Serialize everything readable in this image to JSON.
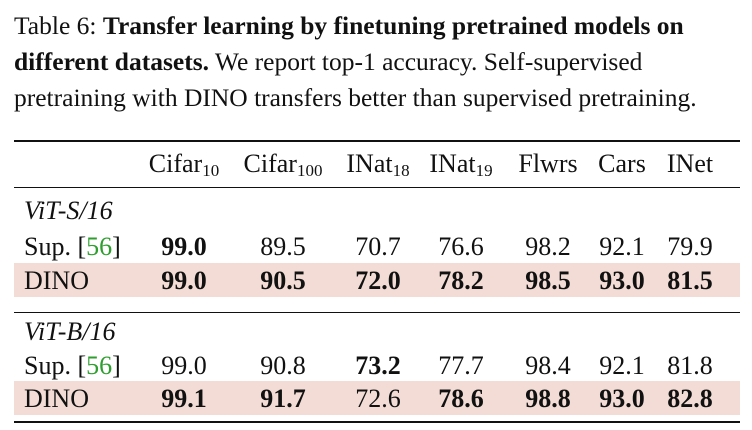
{
  "caption": {
    "label": "Table 6:",
    "title": "Transfer learning by finetuning pretrained models on different datasets.",
    "text": "We report top-1 accuracy. Self-supervised pretraining with DINO transfers better than supervised pretraining."
  },
  "headers": [
    {
      "name": "Cifar",
      "sub": "10"
    },
    {
      "name": "Cifar",
      "sub": "100"
    },
    {
      "name": "INat",
      "sub": "18"
    },
    {
      "name": "INat",
      "sub": "19"
    },
    {
      "name": "Flwrs",
      "sub": ""
    },
    {
      "name": "Cars",
      "sub": ""
    },
    {
      "name": "INet",
      "sub": ""
    }
  ],
  "groups": [
    {
      "name": "ViT-S/16",
      "rows": [
        {
          "method": "Sup.",
          "ref": "56",
          "highlight": false,
          "values": [
            "99.0",
            "89.5",
            "70.7",
            "76.6",
            "98.2",
            "92.1",
            "79.9"
          ],
          "bold": [
            true,
            false,
            false,
            false,
            false,
            false,
            false
          ]
        },
        {
          "method": "DINO",
          "ref": "",
          "highlight": true,
          "values": [
            "99.0",
            "90.5",
            "72.0",
            "78.2",
            "98.5",
            "93.0",
            "81.5"
          ],
          "bold": [
            true,
            true,
            true,
            true,
            true,
            true,
            true
          ]
        }
      ]
    },
    {
      "name": "ViT-B/16",
      "rows": [
        {
          "method": "Sup.",
          "ref": "56",
          "highlight": false,
          "values": [
            "99.0",
            "90.8",
            "73.2",
            "77.7",
            "98.4",
            "92.1",
            "81.8"
          ],
          "bold": [
            false,
            false,
            true,
            false,
            false,
            false,
            false
          ]
        },
        {
          "method": "DINO",
          "ref": "",
          "highlight": true,
          "values": [
            "99.1",
            "91.7",
            "72.6",
            "78.6",
            "98.8",
            "93.0",
            "82.8"
          ],
          "bold": [
            true,
            true,
            false,
            true,
            true,
            true,
            true
          ]
        }
      ]
    }
  ],
  "colors": {
    "highlight": "#f2dcd5",
    "citation": "#2e9e2e"
  }
}
